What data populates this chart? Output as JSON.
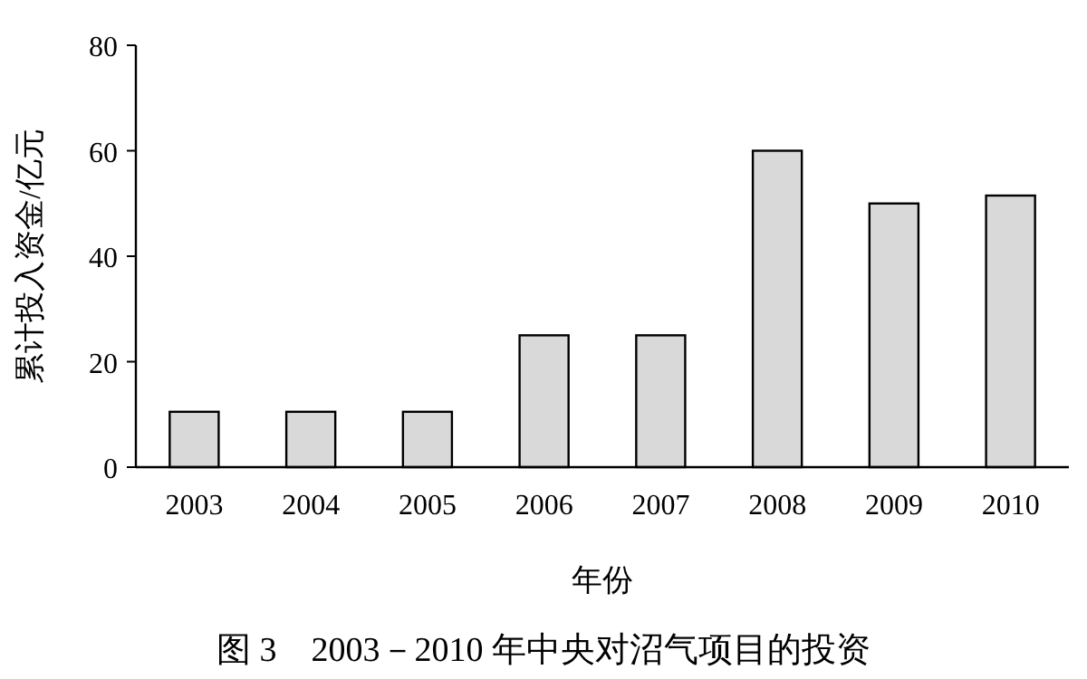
{
  "chart_data": {
    "type": "bar",
    "categories": [
      "2003",
      "2004",
      "2005",
      "2006",
      "2007",
      "2008",
      "2009",
      "2010"
    ],
    "values": [
      10.5,
      10.5,
      10.5,
      25,
      25,
      60,
      50,
      51.5
    ],
    "color": "#d9d9d9",
    "xlabel": "年份",
    "ylabel": "累计投入资金/亿元",
    "ylim": [
      0,
      80
    ],
    "yticks": [
      0,
      20,
      40,
      60,
      80
    ],
    "annotations": [
      "图 3　2003－2010 年中央对沼气项目的投资"
    ],
    "grid": false
  }
}
